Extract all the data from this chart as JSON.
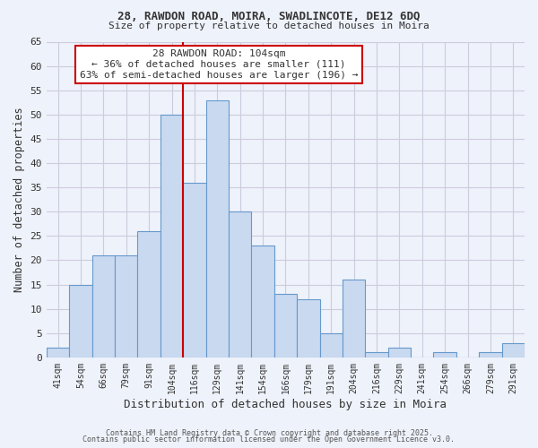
{
  "title1": "28, RAWDON ROAD, MOIRA, SWADLINCOTE, DE12 6DQ",
  "title2": "Size of property relative to detached houses in Moira",
  "xlabel": "Distribution of detached houses by size in Moira",
  "ylabel": "Number of detached properties",
  "bar_labels": [
    "41sqm",
    "54sqm",
    "66sqm",
    "79sqm",
    "91sqm",
    "104sqm",
    "116sqm",
    "129sqm",
    "141sqm",
    "154sqm",
    "166sqm",
    "179sqm",
    "191sqm",
    "204sqm",
    "216sqm",
    "229sqm",
    "241sqm",
    "254sqm",
    "266sqm",
    "279sqm",
    "291sqm"
  ],
  "bar_values": [
    2,
    15,
    21,
    21,
    26,
    50,
    36,
    53,
    30,
    23,
    13,
    12,
    5,
    16,
    1,
    2,
    0,
    1,
    0,
    1,
    3
  ],
  "bar_color": "#c9d9f0",
  "bar_edge_color": "#6699cc",
  "highlight_index": 5,
  "vline_color": "#cc0000",
  "ylim": [
    0,
    65
  ],
  "yticks": [
    0,
    5,
    10,
    15,
    20,
    25,
    30,
    35,
    40,
    45,
    50,
    55,
    60,
    65
  ],
  "annotation_title": "28 RAWDON ROAD: 104sqm",
  "annotation_line1": "← 36% of detached houses are smaller (111)",
  "annotation_line2": "63% of semi-detached houses are larger (196) →",
  "annotation_box_color": "#ffffff",
  "annotation_box_edge": "#cc0000",
  "footer1": "Contains HM Land Registry data © Crown copyright and database right 2025.",
  "footer2": "Contains public sector information licensed under the Open Government Licence v3.0.",
  "grid_color": "#ccccdd",
  "background_color": "#eef2fa"
}
